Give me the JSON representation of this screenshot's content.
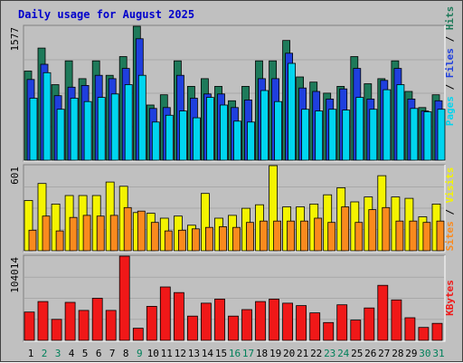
{
  "chart_data": [
    {
      "type": "bar",
      "title": "Daily usage for August 2025",
      "panel": "pages-files-hits",
      "y_max_label": "1577",
      "ylim": [
        0,
        1577
      ],
      "legend_labels": [
        "Pages",
        "Files",
        "Hits"
      ],
      "series": [
        {
          "name": "Hits",
          "color": "#1e7a5a",
          "values": [
            1050,
            1320,
            890,
            1170,
            960,
            1170,
            1000,
            1220,
            1577,
            650,
            770,
            1170,
            870,
            960,
            870,
            700,
            870,
            1170,
            1170,
            1410,
            980,
            920,
            790,
            870,
            1220,
            900,
            960,
            1170,
            810,
            620,
            770
          ]
        },
        {
          "name": "Files",
          "color": "#1f3fde",
          "values": [
            950,
            1130,
            760,
            860,
            880,
            1000,
            960,
            1080,
            1430,
            610,
            620,
            1000,
            730,
            780,
            780,
            620,
            710,
            960,
            960,
            1260,
            850,
            810,
            720,
            840,
            1080,
            720,
            940,
            1080,
            720,
            580,
            700
          ]
        },
        {
          "name": "Pages",
          "color": "#00d5ef",
          "values": [
            730,
            1030,
            600,
            730,
            690,
            740,
            780,
            890,
            1000,
            450,
            530,
            580,
            500,
            740,
            650,
            460,
            450,
            820,
            690,
            1140,
            600,
            580,
            600,
            590,
            740,
            600,
            830,
            890,
            610,
            570,
            600
          ]
        }
      ]
    },
    {
      "type": "bar",
      "panel": "visits-sites",
      "y_max_label": "601",
      "ylim": [
        0,
        601
      ],
      "legend_labels": [
        "Sites",
        "Visits"
      ],
      "series": [
        {
          "name": "Visits",
          "color": "#f4f400",
          "values": [
            355,
            475,
            330,
            390,
            390,
            390,
            485,
            455,
            270,
            265,
            230,
            245,
            180,
            405,
            230,
            250,
            300,
            325,
            601,
            310,
            310,
            330,
            395,
            445,
            345,
            380,
            530,
            380,
            370,
            240,
            330
          ]
        },
        {
          "name": "Sites",
          "color": "#f98a1e",
          "values": [
            145,
            245,
            140,
            235,
            250,
            245,
            250,
            305,
            280,
            200,
            140,
            145,
            155,
            165,
            170,
            165,
            200,
            210,
            210,
            210,
            210,
            230,
            200,
            310,
            200,
            290,
            305,
            210,
            210,
            200,
            210
          ]
        }
      ]
    },
    {
      "type": "bar",
      "panel": "kbytes",
      "y_max_label": "104014",
      "ylim": [
        0,
        104014
      ],
      "legend_labels": [
        "KBytes"
      ],
      "series": [
        {
          "name": "KBytes",
          "color": "#f01818",
          "values": [
            35000,
            48000,
            26000,
            47000,
            37000,
            52000,
            37000,
            104014,
            15000,
            42000,
            66000,
            59000,
            30000,
            46000,
            51000,
            30000,
            38000,
            48000,
            51000,
            46000,
            43000,
            34000,
            22000,
            44000,
            25000,
            40000,
            68000,
            50000,
            28000,
            16000,
            21000
          ]
        }
      ]
    }
  ],
  "x_axis": {
    "days": [
      "1",
      "2",
      "3",
      "4",
      "5",
      "6",
      "7",
      "8",
      "9",
      "10",
      "11",
      "12",
      "13",
      "14",
      "15",
      "16",
      "17",
      "18",
      "19",
      "20",
      "21",
      "22",
      "23",
      "24",
      "25",
      "26",
      "27",
      "28",
      "29",
      "30",
      "31"
    ],
    "weekend_days": [
      "2",
      "3",
      "9",
      "16",
      "17",
      "23",
      "24",
      "30",
      "31"
    ],
    "weekday_color": "#000000",
    "weekend_color": "#00805a"
  },
  "colors": {
    "background": "#c0c0c0",
    "title": "#0000cc",
    "separator": "#000000"
  }
}
